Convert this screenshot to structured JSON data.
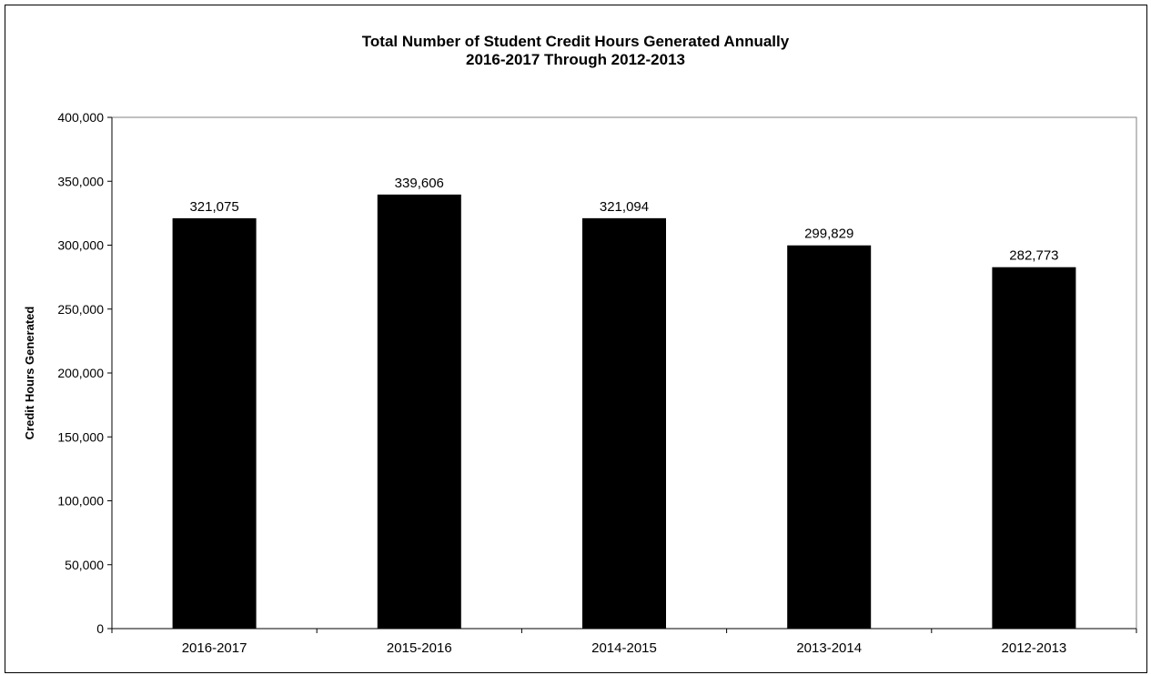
{
  "chart_data": {
    "type": "bar",
    "title": "Total Number of Student Credit Hours Generated Annually",
    "subtitle": "2016-2017 Through 2012-2013",
    "xlabel": "",
    "ylabel": "Credit Hours Generated",
    "categories": [
      "2016-2017",
      "2015-2016",
      "2014-2015",
      "2013-2014",
      "2012-2013"
    ],
    "values": [
      321075,
      339606,
      321094,
      299829,
      282773
    ],
    "value_labels": [
      "321,075",
      "339,606",
      "321,094",
      "299,829",
      "282,773"
    ],
    "ylim": [
      0,
      400000
    ],
    "yticks": [
      0,
      50000,
      100000,
      150000,
      200000,
      250000,
      300000,
      350000,
      400000
    ],
    "ytick_labels": [
      "0",
      "50,000",
      "100,000",
      "150,000",
      "200,000",
      "250,000",
      "300,000",
      "350,000",
      "400,000"
    ],
    "grid": false,
    "legend": "none",
    "bar_color": "#000000"
  }
}
